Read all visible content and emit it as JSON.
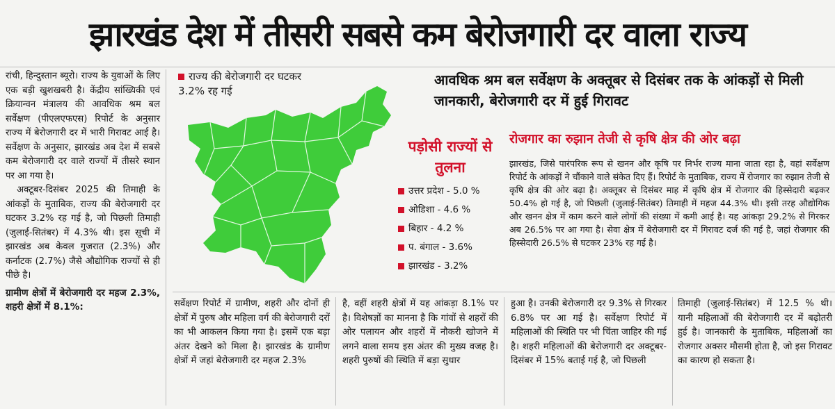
{
  "headline": "झारखंड देश में तीसरी सबसे कम बेरोजगारी दर वाला राज्य",
  "col1": {
    "p1": "रांची, हिन्दुस्तान ब्यूरो। राज्य के युवाओं के लिए एक बड़ी खुशखबरी है। केंद्रीय सांख्यिकी एवं क्रियान्वन मंत्रालय की आवधिक श्रम बल सर्वेक्षण (पीएलएफएस) रिपोर्ट के अनुसार राज्य में बेरोजगारी दर में भारी गिरावट आई है। सर्वेक्षण के अनुसार, झारखंड अब देश में सबसे कम बेरोजगारी दर वाले राज्यों में तीसरे स्थान पर आ गया है।",
    "p2": "अक्टूबर-दिसंबर 2025 की तिमाही के आंकड़ों के मुताबिक, राज्य की बेरोजगारी दर घटकर 3.2% रह गई है, जो पिछली तिमाही (जुलाई-सितंबर) में 4.3% थी। इस सूची में झारखंड अब केवल गुजरात (2.3%) और कर्नाटक (2.7%) जैसे औद्योगिक राज्यों से ही पीछे है।",
    "p3": "ग्रामीण क्षेत्रों में बेरोजगारी दर महज 2.3%, शहरी क्षेत्रों में 8.1%:"
  },
  "map_legend": "राज्य की बेरोजगारी दर घटकर 3.2% रह गई",
  "map_fill": "#3fcc3a",
  "subhead": "आवधिक श्रम बल सर्वेक्षण के अक्तूबर से दिसंबर तक के आंकड़ों से मिली जानकारी, बेरोजगारी दर में हुई गिरावट",
  "neighbor": {
    "title": "पड़ोसी राज्यों से तुलना",
    "items": [
      "उत्तर प्रदेश - 5.0 %",
      "ओडिशा - 4.6 %",
      "बिहार - 4.2 %",
      "प. बंगाल - 3.6%",
      "झारखंड - 3.2%"
    ]
  },
  "right": {
    "title": "रोजगार का रुझान तेजी से कृषि क्षेत्र की ओर बढ़ा",
    "body": "झारखंड, जिसे पारंपरिक रूप से खनन और कृषि पर निर्भर राज्य माना जाता रहा है, वहां सर्वेक्षण रिपोर्ट के आंकड़ों ने चौंकाने वाले संकेत दिए हैं। रिपोर्ट के मुताबिक, राज्य में रोजगार का रुझान तेजी से कृषि क्षेत्र की ओर बढ़ा है। अक्तूबर से दिसंबर माह में कृषि क्षेत्र में रोजगार की हिस्सेदारी बढ़कर 50.4% हो गई है, जो पिछली (जुलाई-सितंबर) तिमाही में महज 44.3% थी। इसी तरह औद्योगिक और खनन क्षेत्र में काम करने वाले लोगों की संख्या में कमी आई है। यह आंकड़ा 29.2% से गिरकर अब 26.5% पर आ गया है। सेवा क्षेत्र में बेरोजगारी दर में गिरावट दर्ज की गई है, जहां रोजगार की हिस्सेदारी 26.5% से घटकर 23% रह गई है।"
  },
  "bottom": {
    "c1": "सर्वेक्षण रिपोर्ट में ग्रामीण, शहरी और दोनों ही क्षेत्रों में पुरुष और महिला वर्ग की बेरोजगारी दरों का भी आकलन किया गया है। इसमें एक बड़ा अंतर देखने को मिला है। झारखंड के ग्रामीण क्षेत्रों में जहां बेरोजगारी दर महज 2.3%",
    "c2": "है, वहीं शहरी क्षेत्रों में यह आंकड़ा 8.1% पर है। विशेषज्ञों का मानना है कि गांवों से शहरों की ओर पलायन और शहरों में नौकरी खोजने में लगने वाला समय इस अंतर की मुख्य वजह है। शहरी पुरुषों की स्थिति में बड़ा सुधार",
    "c3": "हुआ है। उनकी बेरोजगारी दर 9.3% से गिरकर 6.8% पर आ गई है। सर्वेक्षण रिपोर्ट में महिलाओं की स्थिति पर भी चिंता जाहिर की गई है। शहरी महिलाओं की बेरोजगारी दर अक्टूबर-दिसंबर में 15% बताई गई है, जो पिछली",
    "c4": "तिमाही (जुलाई-सितंबर) में 12.5 % थी। यानी महिलाओं की बेरोजगारी दर में बढ़ोतरी हुई है। जानकारी के मुताबिक, महिलाओं का रोजगार अक्सर मौसमी होता है, जो इस गिरावट का कारण हो सकता है।"
  }
}
